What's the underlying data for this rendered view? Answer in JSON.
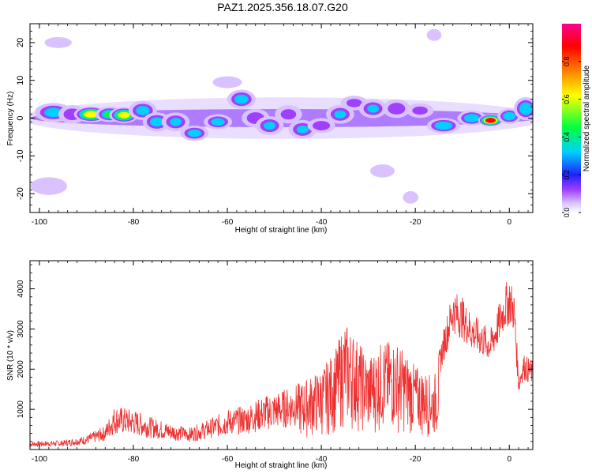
{
  "title": "PAZ1.2025.356.18.07.G20",
  "chart_data": [
    {
      "type": "heatmap",
      "title": "PAZ1.2025.356.18.07.G20",
      "xlabel": "Height of straight line (km)",
      "ylabel": "Frequency (Hz)",
      "xlim": [
        -102,
        5
      ],
      "ylim": [
        -25,
        25
      ],
      "xticks": [
        -100,
        -80,
        -60,
        -40,
        -20,
        0
      ],
      "yticks": [
        -20,
        -10,
        0,
        10,
        20
      ],
      "colorbar": {
        "label": "Normalized spectral amplitude",
        "range": [
          0,
          1
        ],
        "ticks": [
          0.0,
          0.2,
          0.4,
          0.6,
          0.8
        ],
        "colors": [
          "#ffffff",
          "#d9c2ff",
          "#a040ff",
          "#2020ff",
          "#00d0ff",
          "#00ff40",
          "#ffff00",
          "#ff8000",
          "#ff0000",
          "#ff0090"
        ]
      },
      "blobs": [
        {
          "x": -97,
          "y": 1.5,
          "w": 4,
          "h": 2.5,
          "a": 0.45
        },
        {
          "x": -93,
          "y": 1,
          "w": 3,
          "h": 2.5,
          "a": 0.35
        },
        {
          "x": -89,
          "y": 1,
          "w": 3.5,
          "h": 2,
          "a": 0.78
        },
        {
          "x": -85,
          "y": 1,
          "w": 3,
          "h": 2,
          "a": 0.55
        },
        {
          "x": -82,
          "y": 0.8,
          "w": 3,
          "h": 2,
          "a": 0.75
        },
        {
          "x": -78,
          "y": 2,
          "w": 3,
          "h": 2.5,
          "a": 0.45
        },
        {
          "x": -75,
          "y": -1,
          "w": 3,
          "h": 2.5,
          "a": 0.45
        },
        {
          "x": -71,
          "y": -1,
          "w": 3,
          "h": 2.5,
          "a": 0.4
        },
        {
          "x": -67,
          "y": -4,
          "w": 3,
          "h": 2,
          "a": 0.45
        },
        {
          "x": -62,
          "y": -1,
          "w": 3,
          "h": 2,
          "a": 0.45
        },
        {
          "x": -57,
          "y": 5,
          "w": 3,
          "h": 2.5,
          "a": 0.45
        },
        {
          "x": -54,
          "y": 0,
          "w": 3,
          "h": 2.5,
          "a": 0.35
        },
        {
          "x": -51,
          "y": -2,
          "w": 3,
          "h": 2.5,
          "a": 0.4
        },
        {
          "x": -47,
          "y": 1,
          "w": 3,
          "h": 2.5,
          "a": 0.3
        },
        {
          "x": -44,
          "y": -3,
          "w": 3,
          "h": 2.5,
          "a": 0.4
        },
        {
          "x": -40,
          "y": -2,
          "w": 3,
          "h": 2,
          "a": 0.35
        },
        {
          "x": -36,
          "y": 1,
          "w": 3,
          "h": 2.5,
          "a": 0.4
        },
        {
          "x": -33,
          "y": 4,
          "w": 3,
          "h": 2,
          "a": 0.3
        },
        {
          "x": -29,
          "y": 2.5,
          "w": 3,
          "h": 2.5,
          "a": 0.4
        },
        {
          "x": -24,
          "y": 2.5,
          "w": 3,
          "h": 2.5,
          "a": 0.35
        },
        {
          "x": -19,
          "y": 2,
          "w": 3,
          "h": 2,
          "a": 0.3
        },
        {
          "x": -14,
          "y": -2,
          "w": 3.5,
          "h": 2,
          "a": 0.5
        },
        {
          "x": -8,
          "y": 0,
          "w": 3,
          "h": 2,
          "a": 0.5
        },
        {
          "x": -4,
          "y": -0.6,
          "w": 2.5,
          "h": 1.5,
          "a": 0.97
        },
        {
          "x": 0,
          "y": 0.5,
          "w": 2.5,
          "h": 2,
          "a": 0.5
        },
        {
          "x": 3.5,
          "y": 2.5,
          "w": 2.5,
          "h": 3,
          "a": 0.5
        },
        {
          "x": -27,
          "y": -14,
          "w": 3,
          "h": 2,
          "a": 0.15
        },
        {
          "x": -21,
          "y": -21,
          "w": 2,
          "h": 2,
          "a": 0.12
        },
        {
          "x": -16,
          "y": 22,
          "w": 2,
          "h": 2,
          "a": 0.1
        },
        {
          "x": -60,
          "y": 9.5,
          "w": 4,
          "h": 2,
          "a": 0.1
        },
        {
          "x": -98,
          "y": -18,
          "w": 5,
          "h": 3,
          "a": 0.1
        },
        {
          "x": -96,
          "y": 20,
          "w": 4,
          "h": 2,
          "a": 0.08
        }
      ]
    },
    {
      "type": "line",
      "xlabel": "Height of straight line (km)",
      "ylabel": "SNR (10 * v/v)",
      "xlim": [
        -102,
        5
      ],
      "ylim": [
        0,
        4700
      ],
      "xticks": [
        -100,
        -80,
        -60,
        -40,
        -20,
        0
      ],
      "yticks": [
        1000,
        2000,
        3000,
        4000
      ],
      "series": [
        {
          "name": "SNR",
          "color": "#ee3030",
          "envelope_x": [
            -102,
            -95,
            -90,
            -86,
            -84,
            -80,
            -76,
            -72,
            -68,
            -64,
            -60,
            -56,
            -52,
            -48,
            -44,
            -40,
            -37,
            -35,
            -33,
            -30,
            -27,
            -24,
            -20,
            -16,
            -14,
            -12,
            -10,
            -8,
            -6,
            -4,
            -2,
            -1,
            0,
            1,
            2,
            3,
            5
          ],
          "envelope_y": [
            200,
            230,
            350,
            600,
            1100,
            1000,
            800,
            650,
            550,
            750,
            1000,
            1100,
            1350,
            1500,
            1700,
            2000,
            2500,
            3200,
            2900,
            2300,
            2700,
            2700,
            2100,
            1800,
            3000,
            4000,
            3800,
            3400,
            3200,
            3000,
            3700,
            4100,
            4300,
            4000,
            1900,
            2400,
            2200
          ]
        }
      ]
    }
  ]
}
